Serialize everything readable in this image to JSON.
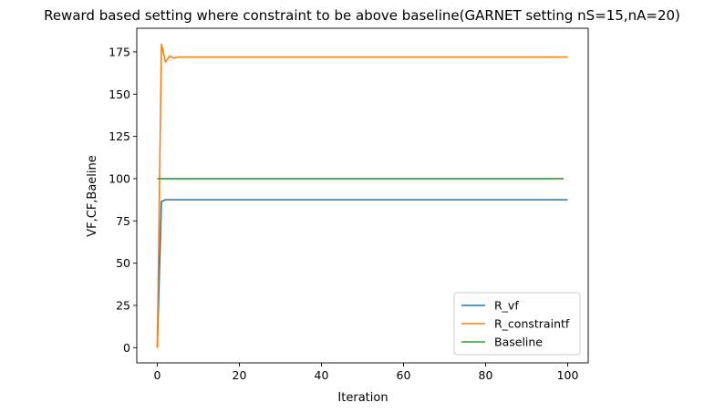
{
  "chart_data": {
    "type": "line",
    "title": "Reward based setting where constraint to be above baseline(GARNET setting nS=15,nA=20)",
    "xlabel": "Iteration",
    "ylabel": "VF,CF,Baeline",
    "xlim": [
      -5,
      105
    ],
    "ylim": [
      -9,
      189
    ],
    "xticks": [
      0,
      20,
      40,
      60,
      80,
      100
    ],
    "yticks": [
      0,
      25,
      50,
      75,
      100,
      125,
      150,
      175
    ],
    "legend_position": "lower right",
    "grid": false,
    "series": [
      {
        "name": "R_vf",
        "color": "#1f77b4",
        "points": [
          [
            0,
            0
          ],
          [
            1,
            86.5
          ],
          [
            2,
            87.5
          ],
          [
            100,
            87.5
          ]
        ]
      },
      {
        "name": "R_constraintf",
        "color": "#ff7f0e",
        "points": [
          [
            0,
            0
          ],
          [
            1,
            179.5
          ],
          [
            2,
            169
          ],
          [
            3,
            172.5
          ],
          [
            4,
            171.3
          ],
          [
            5,
            172
          ],
          [
            100,
            172
          ]
        ]
      },
      {
        "name": "Baseline",
        "color": "#2ca02c",
        "points": [
          [
            0,
            100
          ],
          [
            99,
            100
          ]
        ]
      }
    ]
  }
}
